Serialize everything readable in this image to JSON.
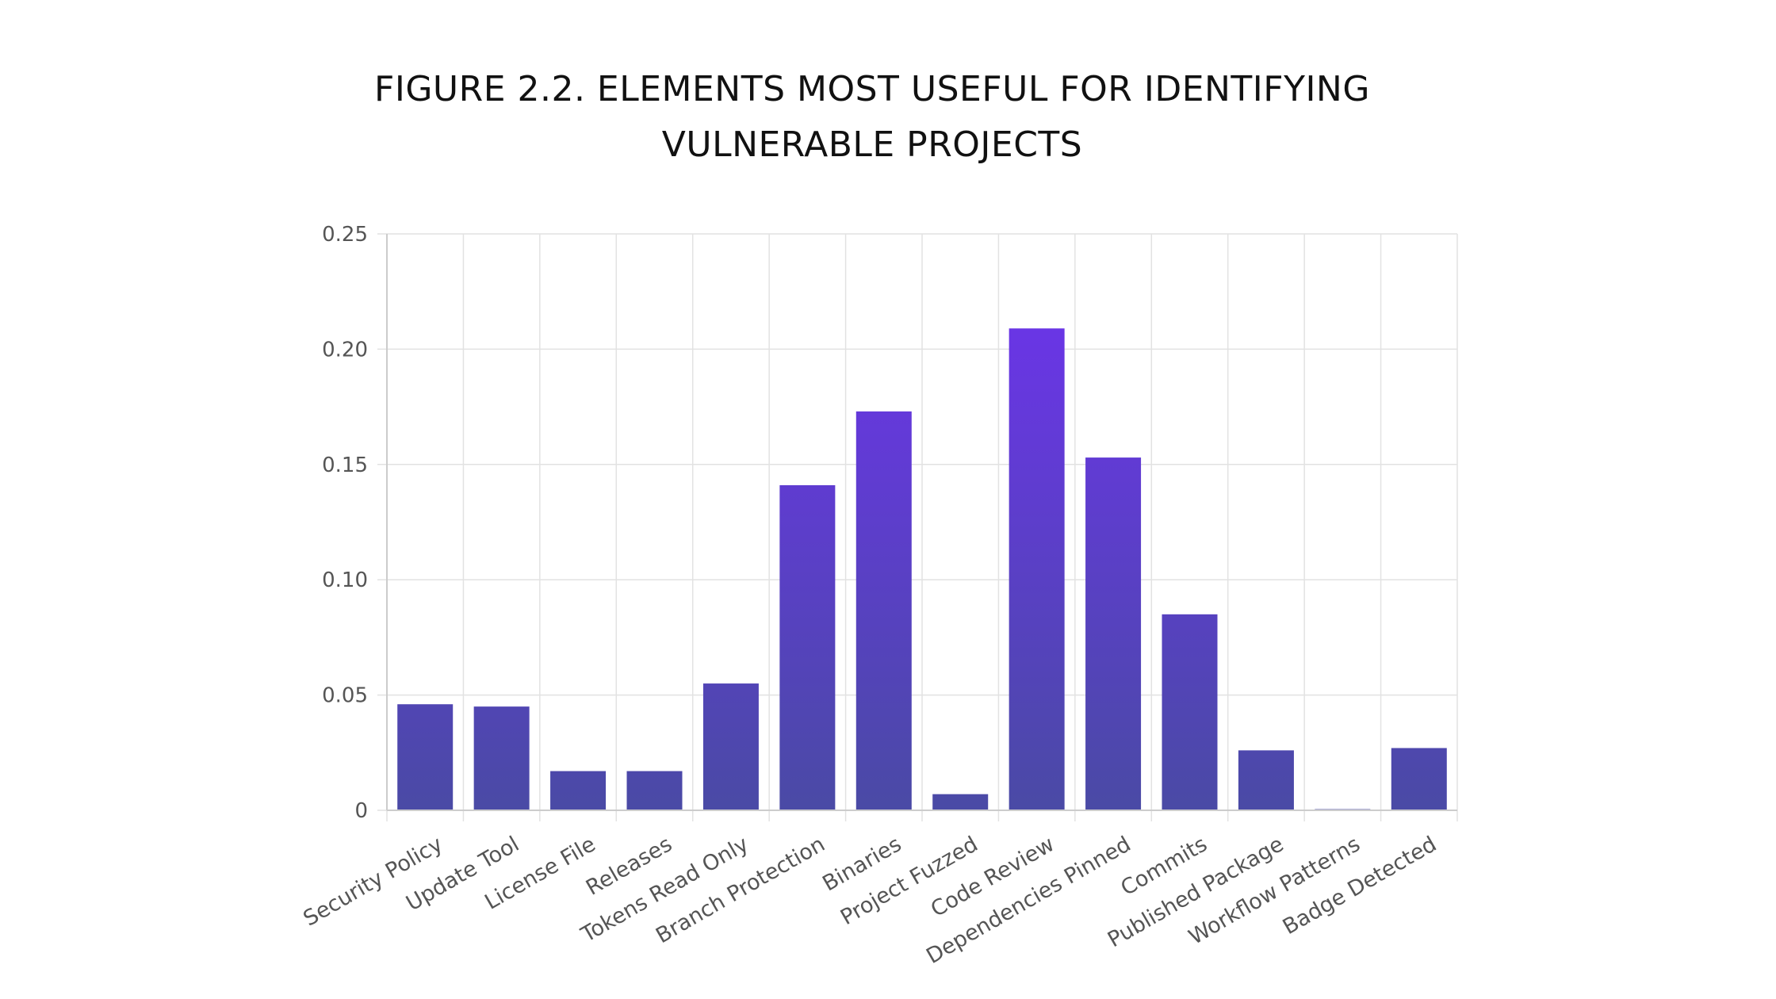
{
  "chart_data": {
    "type": "bar",
    "title_lines": [
      "FIGURE 2.2. ELEMENTS MOST USEFUL FOR IDENTIFYING",
      "VULNERABLE PROJECTS"
    ],
    "categories": [
      "Security Policy",
      "Update Tool",
      "License File",
      "Releases",
      "Tokens Read Only",
      "Branch Protection",
      "Binaries",
      "Project Fuzzed",
      "Code Review",
      "Dependencies Pinned",
      "Commits",
      "Published Package",
      "Workflow Patterns",
      "Badge Detected"
    ],
    "values": [
      0.046,
      0.045,
      0.017,
      0.017,
      0.055,
      0.141,
      0.173,
      0.007,
      0.209,
      0.153,
      0.085,
      0.026,
      0.0005,
      0.027
    ],
    "ylim": [
      0,
      0.25
    ],
    "yticks": [
      {
        "value": 0,
        "label": "0"
      },
      {
        "value": 0.05,
        "label": "0.05"
      },
      {
        "value": 0.1,
        "label": "0.10"
      },
      {
        "value": 0.15,
        "label": "0.15"
      },
      {
        "value": 0.2,
        "label": "0.20"
      },
      {
        "value": 0.25,
        "label": "0.25"
      }
    ],
    "xlabel": "",
    "ylabel": "",
    "grid": true,
    "legend": "none",
    "colors": {
      "bar_top": "#6A35E6",
      "bar_bottom": "#4A4AA5",
      "grid": "#E2E2E2",
      "axis": "#CCCCCC"
    }
  }
}
